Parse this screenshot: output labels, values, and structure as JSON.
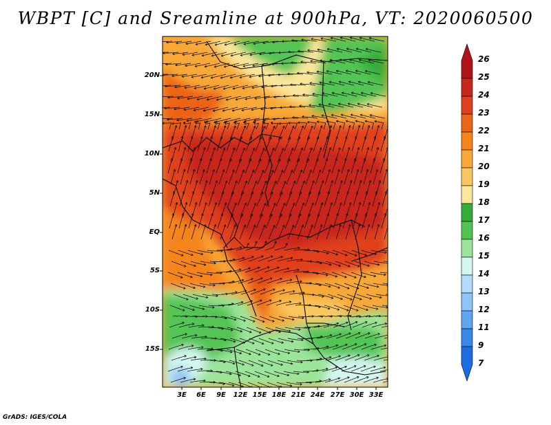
{
  "title": "WBPT [C] and Sreamline at 900hPa, VT: 2020060500",
  "footer": "GrADS: IGES/COLA",
  "lat_labels": [
    "20N",
    "15N",
    "10N",
    "5N",
    "EQ",
    "5S",
    "10S",
    "15S"
  ],
  "lon_labels": [
    "3E",
    "6E",
    "9E",
    "12E",
    "15E",
    "18E",
    "21E",
    "24E",
    "27E",
    "30E",
    "33E"
  ],
  "colorbar": {
    "labels": [
      "26",
      "25",
      "24",
      "23",
      "22",
      "21",
      "20",
      "19",
      "18",
      "17",
      "16",
      "15",
      "14",
      "13",
      "12",
      "11",
      "9",
      "7"
    ],
    "colors": [
      "#b0141a",
      "#c8281c",
      "#e0401e",
      "#ec6418",
      "#f5841a",
      "#f7a838",
      "#f9c760",
      "#fbe69c",
      "#34ac38",
      "#52c454",
      "#9ce49a",
      "#d6f6f0",
      "#b4dcfc",
      "#8ec4f8",
      "#5ea6f2",
      "#3a88e8",
      "#1c6ee0"
    ]
  },
  "map_colors": {
    "hot": "#c8281c",
    "warm": "#ec6418",
    "mild": "#f7a838",
    "cool_yellow": "#fbe69c",
    "green": "#52c454",
    "light_green": "#9ce49a",
    "pale_blue": "#d6f6f0",
    "blue": "#8ec4f8"
  }
}
